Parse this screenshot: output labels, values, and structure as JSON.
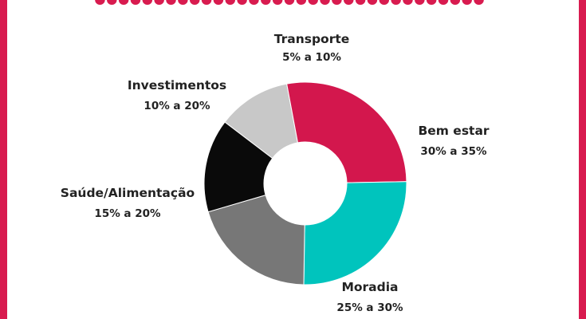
{
  "colors": {
    "border": "#d81b4f",
    "background": "#ffffff"
  },
  "chart_data": {
    "type": "pie",
    "style": "donut",
    "title": "",
    "slices": [
      {
        "name": "Transporte",
        "range": "5% a 10%",
        "value": 11,
        "color": "#c8c8c8"
      },
      {
        "name": "Bem estar",
        "range": "30% a 35%",
        "value": 26,
        "color": "#d3174d"
      },
      {
        "name": "Moradia",
        "range": "25% a 30%",
        "value": 24,
        "color": "#00c4bd"
      },
      {
        "name": "Saúde/Alimentação",
        "range": "15% a 20%",
        "value": 19,
        "color": "#777777"
      },
      {
        "name": "Investimentos",
        "range": "10% a 20%",
        "value": 14,
        "color": "#0a0a0a"
      }
    ]
  }
}
